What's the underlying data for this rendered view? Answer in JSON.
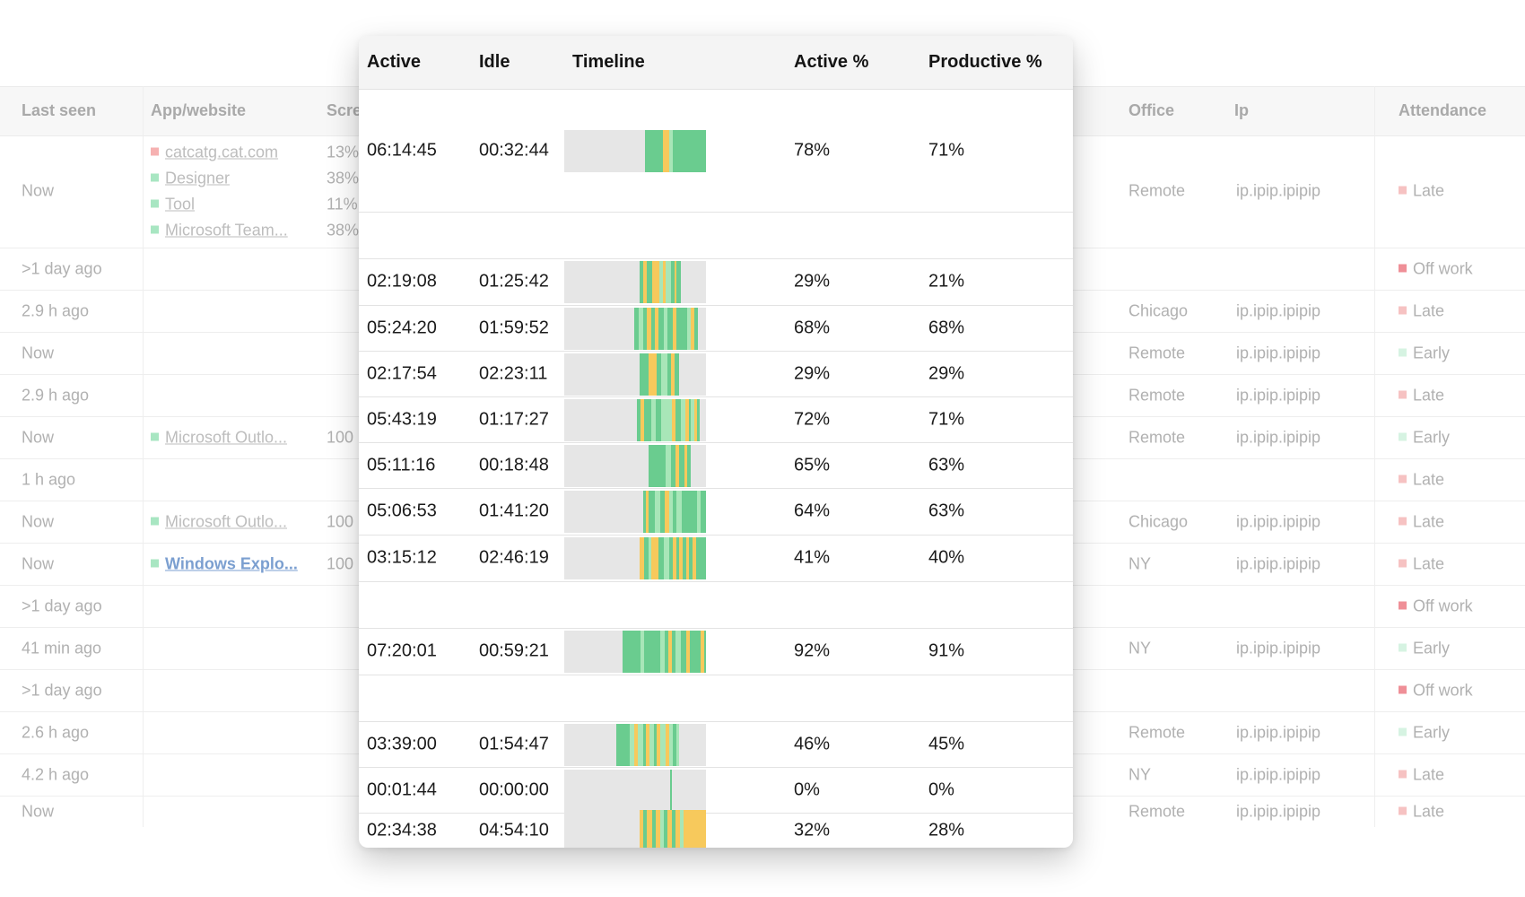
{
  "background_table": {
    "headers": {
      "last_seen": "Last seen",
      "app_website": "App/website",
      "screen_partial": "Scre",
      "office": "Office",
      "ip": "Ip",
      "attendance": "Attendance"
    },
    "first_row_apps": [
      {
        "name": "catcatg.cat.com",
        "pct": "13%",
        "color": "#f6b1b1"
      },
      {
        "name": "Designer",
        "pct": "38%",
        "color": "#a8e6c2"
      },
      {
        "name": "Tool",
        "pct": "11%",
        "color": "#a8e6c2"
      },
      {
        "name": "Microsoft Team...",
        "pct": "38%",
        "color": "#a8e6c2"
      }
    ],
    "rows": [
      {
        "last_seen": "Now",
        "app": "",
        "pct": "",
        "office": "Remote",
        "ip": "ip.ipip.ipipip",
        "attendance": "Late",
        "att_color": "#f6c2c2"
      },
      {
        "last_seen": ">1 day ago",
        "app": "",
        "pct": "",
        "office": "",
        "ip": "",
        "attendance": "Off work",
        "att_color": "#ef8f97"
      },
      {
        "last_seen": "2.9 h ago",
        "app": "",
        "pct": "",
        "office": "Chicago",
        "ip": "ip.ipip.ipipip",
        "attendance": "Late",
        "att_color": "#f6c2c2"
      },
      {
        "last_seen": "Now",
        "app": "",
        "pct": "",
        "office": "Remote",
        "ip": "ip.ipip.ipipip",
        "attendance": "Early",
        "att_color": "#d6f3e2"
      },
      {
        "last_seen": "2.9 h ago",
        "app": "",
        "pct": "",
        "office": "Remote",
        "ip": "ip.ipip.ipipip",
        "attendance": "Late",
        "att_color": "#f6c2c2"
      },
      {
        "last_seen": "Now",
        "app": "Microsoft Outlo...",
        "pct": "100",
        "office": "Remote",
        "ip": "ip.ipip.ipipip",
        "attendance": "Early",
        "att_color": "#d6f3e2"
      },
      {
        "last_seen": "1 h ago",
        "app": "",
        "pct": "",
        "office": "",
        "ip": "",
        "attendance": "Late",
        "att_color": "#f6c2c2"
      },
      {
        "last_seen": "Now",
        "app": "Microsoft Outlo...",
        "pct": "100",
        "office": "Chicago",
        "ip": "ip.ipip.ipipip",
        "attendance": "Late",
        "att_color": "#f6c2c2"
      },
      {
        "last_seen": "Now",
        "app": "Windows Explo...",
        "pct": "100",
        "office": "NY",
        "ip": "ip.ipip.ipipip",
        "attendance": "Late",
        "att_color": "#f6c2c2"
      },
      {
        "last_seen": ">1 day ago",
        "app": "",
        "pct": "",
        "office": "",
        "ip": "",
        "attendance": "Off work",
        "att_color": "#ef8f97"
      },
      {
        "last_seen": "41 min ago",
        "app": "",
        "pct": "",
        "office": "NY",
        "ip": "ip.ipip.ipipip",
        "attendance": "Early",
        "att_color": "#d6f3e2"
      },
      {
        "last_seen": ">1 day ago",
        "app": "",
        "pct": "",
        "office": "",
        "ip": "",
        "attendance": "Off work",
        "att_color": "#ef8f97"
      },
      {
        "last_seen": "2.6 h ago",
        "app": "",
        "pct": "",
        "office": "Remote",
        "ip": "ip.ipip.ipipip",
        "attendance": "Early",
        "att_color": "#d6f3e2"
      },
      {
        "last_seen": "4.2 h ago",
        "app": "",
        "pct": "",
        "office": "NY",
        "ip": "ip.ipip.ipipip",
        "attendance": "Late",
        "att_color": "#f6c2c2"
      },
      {
        "last_seen": "Now",
        "app": "",
        "pct": "",
        "office": "Remote",
        "ip": "ip.ipip.ipipip",
        "attendance": "Late",
        "att_color": "#f6c2c2"
      }
    ]
  },
  "panel": {
    "headers": {
      "active": "Active",
      "idle": "Idle",
      "timeline": "Timeline",
      "active_pct": "Active %",
      "productive_pct": "Productive %"
    },
    "colors": {
      "green": "#6acc8f",
      "light_green": "#a8e6b8",
      "yellow": "#f7c95c",
      "track": "#e6e6e6"
    },
    "rows": [
      {
        "active": "06:14:45",
        "idle": "00:32:44",
        "active_pct": "78%",
        "productive_pct": "71%"
      },
      {
        "active": "",
        "idle": "",
        "active_pct": "",
        "productive_pct": ""
      },
      {
        "active": "02:19:08",
        "idle": "01:25:42",
        "active_pct": "29%",
        "productive_pct": "21%"
      },
      {
        "active": "05:24:20",
        "idle": "01:59:52",
        "active_pct": "68%",
        "productive_pct": "68%"
      },
      {
        "active": "02:17:54",
        "idle": "02:23:11",
        "active_pct": "29%",
        "productive_pct": "29%"
      },
      {
        "active": "05:43:19",
        "idle": "01:17:27",
        "active_pct": "72%",
        "productive_pct": "71%"
      },
      {
        "active": "05:11:16",
        "idle": "00:18:48",
        "active_pct": "65%",
        "productive_pct": "63%"
      },
      {
        "active": "05:06:53",
        "idle": "01:41:20",
        "active_pct": "64%",
        "productive_pct": "63%"
      },
      {
        "active": "03:15:12",
        "idle": "02:46:19",
        "active_pct": "41%",
        "productive_pct": "40%"
      },
      {
        "active": "",
        "idle": "",
        "active_pct": "",
        "productive_pct": ""
      },
      {
        "active": "07:20:01",
        "idle": "00:59:21",
        "active_pct": "92%",
        "productive_pct": "91%"
      },
      {
        "active": "",
        "idle": "",
        "active_pct": "",
        "productive_pct": ""
      },
      {
        "active": "03:39:00",
        "idle": "01:54:47",
        "active_pct": "46%",
        "productive_pct": "45%"
      },
      {
        "active": "00:01:44",
        "idle": "00:00:00",
        "active_pct": "0%",
        "productive_pct": "0%"
      },
      {
        "active": "02:34:38",
        "idle": "04:54:10",
        "active_pct": "32%",
        "productive_pct": "28%"
      }
    ]
  }
}
